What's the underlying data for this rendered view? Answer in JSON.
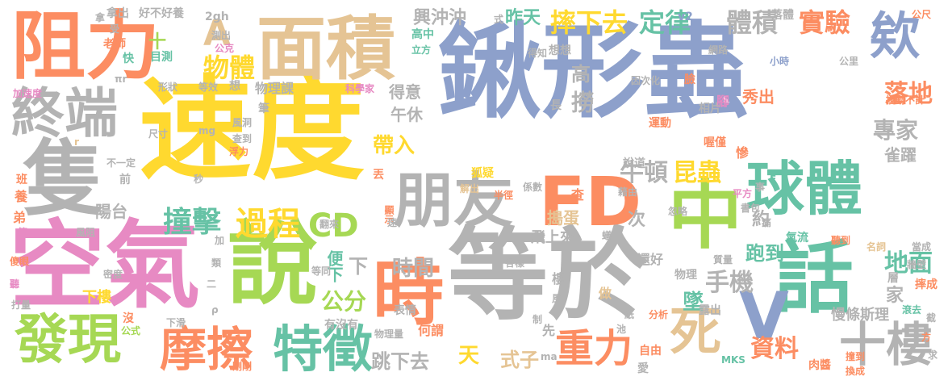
{
  "palette": {
    "blue": "#8da0cb",
    "gray": "#b3b3b3",
    "yellow": "#ffd92f",
    "orange": "#fc8d62",
    "pink": "#e78ac3",
    "green": "#a6d854",
    "teal": "#66c2a5",
    "tan": "#e5c494"
  },
  "words": [
    {
      "text": "鍬形蟲",
      "color": "blue"
    },
    {
      "text": "速度",
      "color": "yellow"
    },
    {
      "text": "等於",
      "color": "gray"
    },
    {
      "text": "空氣",
      "color": "pink"
    },
    {
      "text": "說",
      "color": "green"
    },
    {
      "text": "面積",
      "color": "tan"
    },
    {
      "text": "阻力",
      "color": "orange"
    },
    {
      "text": "隻",
      "color": "gray"
    },
    {
      "text": "終端",
      "color": "gray"
    },
    {
      "text": "朋友",
      "color": "gray"
    },
    {
      "text": "時",
      "color": "orange"
    },
    {
      "text": "FD",
      "color": "orange"
    },
    {
      "text": "中",
      "color": "green"
    },
    {
      "text": "球體",
      "color": "teal"
    },
    {
      "text": "話",
      "color": "teal"
    },
    {
      "text": "V",
      "color": "blue"
    },
    {
      "text": "發現",
      "color": "green"
    },
    {
      "text": "摩擦",
      "color": "orange"
    },
    {
      "text": "特徵",
      "color": "teal"
    },
    {
      "text": "重力",
      "color": "orange"
    },
    {
      "text": "十樓",
      "color": "gray"
    },
    {
      "text": "死",
      "color": "tan"
    },
    {
      "text": "欸",
      "color": "blue"
    },
    {
      "text": "A",
      "color": "tan"
    },
    {
      "text": "CD",
      "color": "green"
    },
    {
      "text": "過程",
      "color": "yellow"
    },
    {
      "text": "撞擊",
      "color": "teal"
    },
    {
      "text": "物體",
      "color": "yellow"
    },
    {
      "text": "摔下去",
      "color": "yellow"
    },
    {
      "text": "定律",
      "color": "teal"
    },
    {
      "text": "體積",
      "color": "gray"
    },
    {
      "text": "實驗",
      "color": "orange"
    },
    {
      "text": "牛頓",
      "color": "gray"
    },
    {
      "text": "昆蟲",
      "color": "yellow"
    },
    {
      "text": "手機",
      "color": "gray"
    },
    {
      "text": "公分",
      "color": "green"
    },
    {
      "text": "資料",
      "color": "orange"
    },
    {
      "text": "地面",
      "color": "teal"
    },
    {
      "text": "落地",
      "color": "orange"
    },
    {
      "text": "專家",
      "color": "gray"
    },
    {
      "text": "墜",
      "color": "teal"
    },
    {
      "text": "時間",
      "color": "gray"
    },
    {
      "text": "下",
      "color": "gray"
    },
    {
      "text": "便下",
      "color": "teal"
    },
    {
      "text": "帶入",
      "color": "yellow"
    },
    {
      "text": "天",
      "color": "yellow"
    },
    {
      "text": "跳下去",
      "color": "gray"
    },
    {
      "text": "式子",
      "color": "tan"
    },
    {
      "text": "興沖沖",
      "color": "gray"
    },
    {
      "text": "昨天",
      "color": "teal"
    },
    {
      "text": "跑到",
      "color": "teal"
    },
    {
      "text": "約",
      "color": "gray"
    },
    {
      "text": "次",
      "color": "gray"
    },
    {
      "text": "家",
      "color": "gray"
    },
    {
      "text": "慢條斯理",
      "color": "gray"
    },
    {
      "text": "陽台",
      "color": "gray"
    },
    {
      "text": "得意",
      "color": "gray"
    },
    {
      "text": "午休",
      "color": "gray"
    },
    {
      "text": "秀出",
      "color": "orange"
    },
    {
      "text": "雀躍",
      "color": "gray"
    },
    {
      "text": "撈",
      "color": "gray"
    },
    {
      "text": "高",
      "color": "gray"
    },
    {
      "text": "搗蛋",
      "color": "tan"
    },
    {
      "text": "飛上來",
      "color": "gray"
    },
    {
      "text": "十",
      "color": "green"
    },
    {
      "text": "物理課",
      "color": "gray"
    },
    {
      "text": "表情",
      "color": "gray"
    },
    {
      "text": "何謂",
      "color": "orange"
    },
    {
      "text": "有沒有",
      "color": "gray"
    },
    {
      "text": "下樓",
      "color": "yellow"
    },
    {
      "text": "樓",
      "color": "gray"
    },
    {
      "text": "先",
      "color": "gray"
    },
    {
      "text": "做",
      "color": "tan"
    },
    {
      "text": "查",
      "color": "orange"
    },
    {
      "text": "狐疑",
      "color": "yellow"
    },
    {
      "text": "說道",
      "color": "gray"
    },
    {
      "text": "還好",
      "color": "gray"
    },
    {
      "text": "物理",
      "color": "gray"
    },
    {
      "text": "氣流",
      "color": "teal"
    },
    {
      "text": "露出",
      "color": "gray"
    },
    {
      "text": "層",
      "color": "gray"
    },
    {
      "text": "摔成",
      "color": "orange"
    },
    {
      "text": "腳",
      "color": "pink"
    },
    {
      "text": "運動",
      "color": "orange"
    },
    {
      "text": "相片",
      "color": "gray"
    },
    {
      "text": "喔僅",
      "color": "orange"
    },
    {
      "text": "擾動不計",
      "color": "orange"
    },
    {
      "text": "v2",
      "color": "blue"
    },
    {
      "text": "落體",
      "color": "gray"
    },
    {
      "text": "2gh",
      "color": "gray"
    },
    {
      "text": "拿出",
      "color": "gray"
    },
    {
      "text": "好不好養",
      "color": "gray"
    },
    {
      "text": "老師",
      "color": "orange"
    },
    {
      "text": "快",
      "color": "teal"
    },
    {
      "text": "目測",
      "color": "teal"
    },
    {
      "text": "加速度",
      "color": "pink"
    },
    {
      "text": "形狀",
      "color": "gray"
    },
    {
      "text": "等效",
      "color": "gray"
    },
    {
      "text": "想",
      "color": "gray"
    },
    {
      "text": "科學家",
      "color": "pink"
    },
    {
      "text": "筆",
      "color": "gray"
    },
    {
      "text": "風洞",
      "color": "gray"
    },
    {
      "text": "查到",
      "color": "gray"
    },
    {
      "text": "浮力",
      "color": "orange"
    },
    {
      "text": "尺寸",
      "color": "gray"
    },
    {
      "text": "不一定",
      "color": "gray"
    },
    {
      "text": "前",
      "color": "gray"
    },
    {
      "text": "養",
      "color": "orange"
    },
    {
      "text": "弟",
      "color": "orange"
    },
    {
      "text": "第一",
      "color": "pink"
    },
    {
      "text": "風阻",
      "color": "gray"
    },
    {
      "text": "密度",
      "color": "gray"
    },
    {
      "text": "聽",
      "color": "pink"
    },
    {
      "text": "打量",
      "color": "gray"
    },
    {
      "text": "下滑",
      "color": "gray"
    },
    {
      "text": "公式",
      "color": "green"
    },
    {
      "text": "剛剛",
      "color": "orange"
    },
    {
      "text": "沒",
      "color": "orange"
    },
    {
      "text": "自由",
      "color": "orange"
    },
    {
      "text": "愛",
      "color": "gray"
    },
    {
      "text": "分析",
      "color": "orange"
    },
    {
      "text": "紙",
      "color": "gray"
    },
    {
      "text": "肉醬",
      "color": "orange"
    },
    {
      "text": "換成",
      "color": "orange"
    },
    {
      "text": "撞到",
      "color": "orange"
    },
    {
      "text": "MKS",
      "color": "teal"
    },
    {
      "text": "公尺",
      "color": "orange"
    },
    {
      "text": "公里",
      "color": "gray"
    },
    {
      "text": "小時",
      "color": "blue"
    },
    {
      "text": "網路",
      "color": "gray"
    },
    {
      "text": "想想",
      "color": "gray"
    },
    {
      "text": "得知",
      "color": "gray"
    },
    {
      "text": "因次化",
      "color": "gray"
    },
    {
      "text": "半徑",
      "color": "orange"
    },
    {
      "text": "係數",
      "color": "gray"
    },
    {
      "text": "解出",
      "color": "tan"
    },
    {
      "text": "藉由",
      "color": "gray"
    },
    {
      "text": "平方",
      "color": "pink"
    },
    {
      "text": "書包",
      "color": "gray"
    },
    {
      "text": "忽略",
      "color": "gray"
    },
    {
      "text": "名詞",
      "color": "tan"
    },
    {
      "text": "當成",
      "color": "gray"
    },
    {
      "text": "牆壁",
      "color": "gray"
    },
    {
      "text": "聽到",
      "color": "orange"
    },
    {
      "text": "滾去",
      "color": "teal"
    },
    {
      "text": "質量",
      "color": "gray"
    },
    {
      "text": "各樣",
      "color": "gray"
    },
    {
      "text": "翻來",
      "color": "gray"
    },
    {
      "text": "等同",
      "color": "gray"
    },
    {
      "text": "丟",
      "color": "orange"
    },
    {
      "text": "顯示",
      "color": "orange"
    },
    {
      "text": "速",
      "color": "gray"
    },
    {
      "text": "物理量",
      "color": "gray"
    },
    {
      "text": "制",
      "color": "gray"
    },
    {
      "text": "高中",
      "color": "teal"
    },
    {
      "text": "立方",
      "color": "teal"
    },
    {
      "text": "長",
      "color": "gray"
    },
    {
      "text": "班",
      "color": "orange"
    },
    {
      "text": "r",
      "color": "tan"
    },
    {
      "text": "πr",
      "color": "gray"
    },
    {
      "text": "mg",
      "color": "gray"
    },
    {
      "text": "秒",
      "color": "gray"
    },
    {
      "text": "ma",
      "color": "gray"
    },
    {
      "text": "受",
      "color": "gray"
    },
    {
      "text": "測出",
      "color": "gray"
    },
    {
      "text": "公克",
      "color": "pink"
    },
    {
      "text": "慘",
      "color": "orange"
    },
    {
      "text": "臉",
      "color": "orange"
    },
    {
      "text": "F",
      "color": "teal"
    },
    {
      "text": "事",
      "color": "gray"
    },
    {
      "text": "式",
      "color": "gray"
    },
    {
      "text": "求",
      "color": "gray"
    },
    {
      "text": "方",
      "color": "orange"
    },
    {
      "text": "截",
      "color": "gray"
    },
    {
      "text": "ρ",
      "color": "gray"
    },
    {
      "text": "二",
      "color": "gray"
    },
    {
      "text": "類",
      "color": "gray"
    },
    {
      "text": "加",
      "color": "gray"
    },
    {
      "text": "池",
      "color": "gray"
    },
    {
      "text": "風",
      "color": "gray"
    },
    {
      "text": "蟻",
      "color": "gray"
    },
    {
      "text": "痛",
      "color": "gray"
    },
    {
      "text": "傻眼",
      "color": "orange"
    },
    {
      "text": "拿",
      "color": "gray"
    }
  ]
}
